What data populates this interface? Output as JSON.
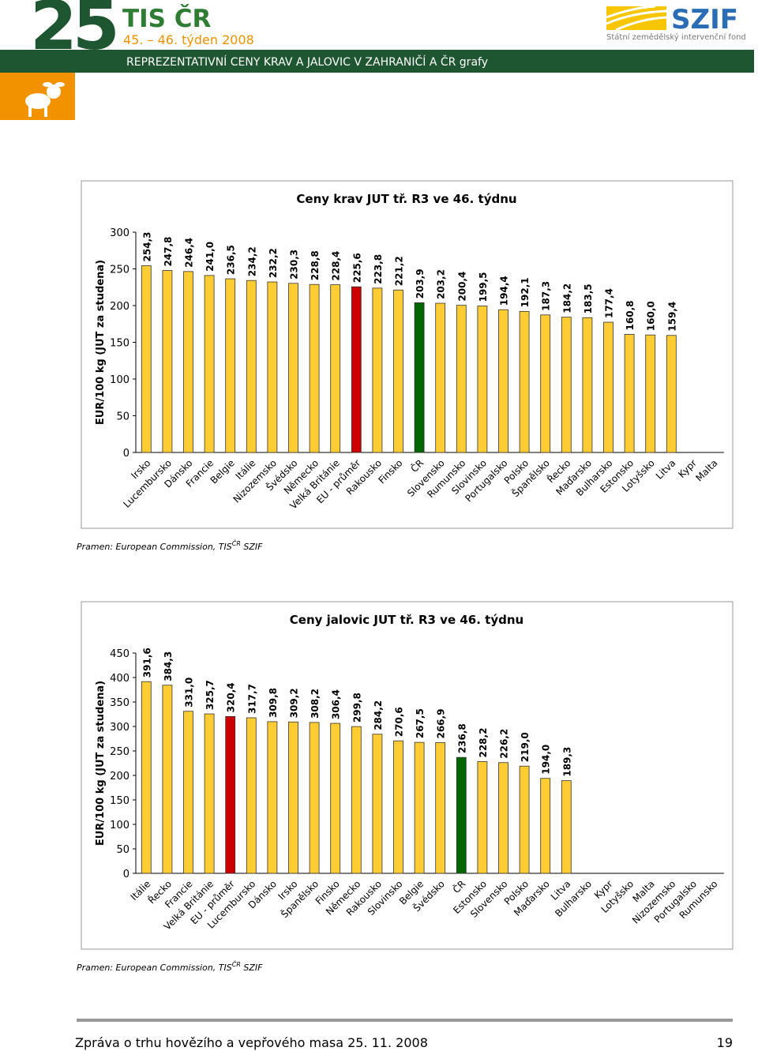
{
  "header": {
    "number": "25",
    "brand": "TIS ČR",
    "week": "45. – 46. týden 2008",
    "banner": "REPREZENTATIVNÍ CENY KRAV A JALOVIC  V ZAHRANIČÍ  A  ČR   grafy",
    "logo": "SZIF",
    "logo_subtitle": "Státní zemědělský intervenční fond"
  },
  "chart_data": [
    {
      "type": "bar",
      "title": "Ceny krav JUT  tř. R3  ve 46. týdnu",
      "ylabel": "EUR/100 kg (JUT za studena)",
      "categories": [
        "Irsko",
        "Lucembursko",
        "Dánsko",
        "Francie",
        "Belgie",
        "Itálie",
        "Nizozemsko",
        "Švédsko",
        "Německo",
        "Velká Británie",
        "EU - průměr",
        "Rakousko",
        "Finsko",
        "ČR",
        "Slovensko",
        "Rumunsko",
        "Slovinsko",
        "Portugalsko",
        "Polsko",
        "Španělsko",
        "Řecko",
        "Maďarsko",
        "Bulharsko",
        "Estonsko",
        "Lotyšsko",
        "Litva",
        "Kypr",
        "Malta"
      ],
      "values": [
        254.3,
        247.8,
        246.4,
        241.0,
        236.5,
        234.2,
        232.2,
        230.3,
        228.8,
        228.4,
        225.6,
        223.8,
        221.2,
        203.9,
        203.2,
        200.4,
        199.5,
        194.4,
        192.1,
        187.3,
        184.2,
        183.5,
        177.4,
        160.8,
        160.0,
        159.4,
        null,
        null
      ],
      "value_labels": [
        "254,3",
        "247,8",
        "246,4",
        "241,0",
        "236,5",
        "234,2",
        "232,2",
        "230,3",
        "228,8",
        "228,4",
        "225,6",
        "223,8",
        "221,2",
        "203,9",
        "203,2",
        "200,4",
        "199,5",
        "194,4",
        "192,1",
        "187,3",
        "184,2",
        "183,5",
        "177,4",
        "160,8",
        "160,0",
        "159,4",
        null,
        null
      ],
      "colors": [
        "#ffcc33",
        "#ffcc33",
        "#ffcc33",
        "#ffcc33",
        "#ffcc33",
        "#ffcc33",
        "#ffcc33",
        "#ffcc33",
        "#ffcc33",
        "#ffcc33",
        "#cc0000",
        "#ffcc33",
        "#ffcc33",
        "#006600",
        "#ffcc33",
        "#ffcc33",
        "#ffcc33",
        "#ffcc33",
        "#ffcc33",
        "#ffcc33",
        "#ffcc33",
        "#ffcc33",
        "#ffcc33",
        "#ffcc33",
        "#ffcc33",
        "#ffcc33",
        null,
        null
      ],
      "ylim": [
        0,
        300
      ],
      "yticks": [
        0,
        50,
        100,
        150,
        200,
        250,
        300
      ],
      "grid": false,
      "source": {
        "text": "Pramen: European Commission, TIS",
        "sup": "ČR",
        "rest": " SZIF"
      }
    },
    {
      "type": "bar",
      "title": "Ceny jalovic JUT  tř. R3  ve 46. týdnu",
      "ylabel": "EUR/100 kg (JUT za studena)",
      "categories": [
        "Itálie",
        "Řecko",
        "Francie",
        "Velká Británie",
        "EU - průměr",
        "Lucembursko",
        "Dánsko",
        "Irsko",
        "Španělsko",
        "Finsko",
        "Německo",
        "Rakousko",
        "Slovinsko",
        "Belgie",
        "Švédsko",
        "ČR",
        "Estonsko",
        "Slovensko",
        "Polsko",
        "Maďarsko",
        "Litva",
        "Bulharsko",
        "Kypr",
        "Lotyšsko",
        "Malta",
        "Nizozemsko",
        "Portugalsko",
        "Rumunsko"
      ],
      "values": [
        391.6,
        384.3,
        331.0,
        325.7,
        320.4,
        317.7,
        309.8,
        309.2,
        308.2,
        306.4,
        299.8,
        284.2,
        270.6,
        267.5,
        266.9,
        236.8,
        228.2,
        226.2,
        219.0,
        194.0,
        189.3,
        null,
        null,
        null,
        null,
        null,
        null,
        null
      ],
      "value_labels": [
        "391,6",
        "384,3",
        "331,0",
        "325,7",
        "320,4",
        "317,7",
        "309,8",
        "309,2",
        "308,2",
        "306,4",
        "299,8",
        "284,2",
        "270,6",
        "267,5",
        "266,9",
        "236,8",
        "228,2",
        "226,2",
        "219,0",
        "194,0",
        "189,3",
        null,
        null,
        null,
        null,
        null,
        null,
        null
      ],
      "colors": [
        "#ffcc33",
        "#ffcc33",
        "#ffcc33",
        "#ffcc33",
        "#cc0000",
        "#ffcc33",
        "#ffcc33",
        "#ffcc33",
        "#ffcc33",
        "#ffcc33",
        "#ffcc33",
        "#ffcc33",
        "#ffcc33",
        "#ffcc33",
        "#ffcc33",
        "#006600",
        "#ffcc33",
        "#ffcc33",
        "#ffcc33",
        "#ffcc33",
        "#ffcc33",
        null,
        null,
        null,
        null,
        null,
        null,
        null
      ],
      "ylim": [
        0,
        450
      ],
      "yticks": [
        0,
        50,
        100,
        150,
        200,
        250,
        300,
        350,
        400,
        450
      ],
      "grid": false,
      "source": {
        "text": "Pramen: European Commission, TIS",
        "sup": "ČR",
        "rest": " SZIF"
      }
    }
  ],
  "footer": {
    "text": "Zpráva o trhu hovězího a vepřového masa 25. 11. 2008",
    "page": "19"
  }
}
